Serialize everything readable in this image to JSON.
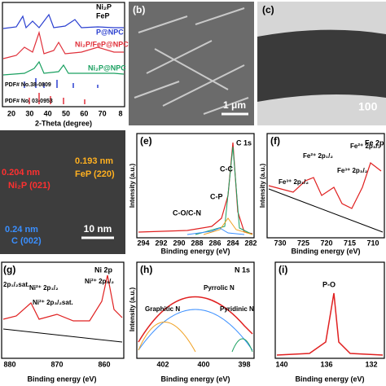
{
  "a": {
    "legend": [
      "Ni₂P",
      "FeP"
    ],
    "curves": [
      "P@NPC",
      "Ni₂P/FeP@NPC",
      "Ni₂P@NPC"
    ],
    "refs": [
      "PDF# No.38-0809",
      "PDF# No. 03-0953"
    ],
    "x_label": "2-Theta (degree)",
    "x_ticks": [
      "20",
      "30",
      "40",
      "50",
      "60",
      "70",
      "8"
    ]
  },
  "b": {
    "label": "(b)",
    "scale": "1 μm"
  },
  "c": {
    "label": "(c)",
    "scale": "100"
  },
  "d": {
    "d1": "0.204 nm",
    "p1": "Ni₂P (021)",
    "d2": "0.193 nm",
    "p2": "FeP (220)",
    "d3": "0.24 nm",
    "p3": "C (002)",
    "scale": "10 nm"
  },
  "e": {
    "label": "(e)",
    "title": "C 1s",
    "peaks": [
      "C-C",
      "C-P",
      "C-O/C-N"
    ],
    "y_label": "Intensity (a.u.)",
    "x_label": "Binding energy (eV)",
    "x_ticks": [
      "294",
      "292",
      "290",
      "288",
      "286",
      "284",
      "282"
    ]
  },
  "f": {
    "label": "(f)",
    "title": "Fe 2p",
    "peaks": [
      "Fe³⁺ 2p₁/₂",
      "Fe²⁺ 2p₁/₂",
      "Fe³⁺ 2p₃/₂",
      "Fe²⁺ 2p₃/₂"
    ],
    "y_label": "Intensity (a.u.)",
    "x_label": "Binding energy (eV)",
    "x_ticks": [
      "730",
      "725",
      "720",
      "715",
      "710"
    ]
  },
  "g": {
    "label": "(g)",
    "title": "Ni 2p",
    "peaks": [
      "2p₁/₂sat.",
      "Ni²⁺ 2p₁/₂",
      "Ni²⁺ 2p₃/₂sat.",
      "Ni²⁺ 2p₃/₂"
    ],
    "x_label": "Binding energy (eV)",
    "x_ticks": [
      "880",
      "870",
      "860"
    ]
  },
  "h": {
    "label": "(h)",
    "title": "N 1s",
    "peaks": [
      "Pyrrolic N",
      "Graphitic N",
      "Pyridinic N"
    ],
    "y_label": "Intensity (a.u.)",
    "x_label": "Binding energy (eV)",
    "x_ticks": [
      "402",
      "400",
      "398"
    ]
  },
  "i": {
    "label": "(i)",
    "peaks": [
      "P-O"
    ],
    "x_label": "Binding energy (eV)",
    "x_ticks": [
      "140",
      "136",
      "132"
    ]
  }
}
